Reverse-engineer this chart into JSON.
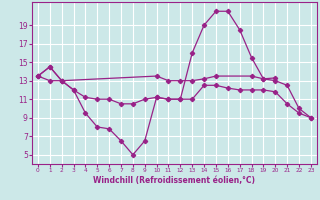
{
  "xlabel": "Windchill (Refroidissement éolien,°C)",
  "background_color": "#cce8e8",
  "line_color": "#992288",
  "grid_color": "#ffffff",
  "hours": [
    0,
    1,
    2,
    3,
    4,
    5,
    6,
    7,
    8,
    9,
    10,
    11,
    12,
    13,
    14,
    15,
    16,
    17,
    18,
    19,
    20,
    21,
    22,
    23
  ],
  "series_peak": [
    13.5,
    14.5,
    13.0,
    12.0,
    9.5,
    8.0,
    7.8,
    6.5,
    5.0,
    6.5,
    11.2,
    11.0,
    11.0,
    16.0,
    19.0,
    20.5,
    20.5,
    18.5,
    15.5,
    13.2,
    13.0,
    12.5,
    10.0,
    9.0
  ],
  "series_mid": [
    13.5,
    13.0,
    13.0,
    12.0,
    11.2,
    11.0,
    11.0,
    10.5,
    10.5,
    11.0,
    11.2,
    11.0,
    11.0,
    11.0,
    12.5,
    12.5,
    12.2,
    12.0,
    12.0,
    12.0,
    11.8,
    10.5,
    9.5,
    9.0
  ],
  "series_top_x": [
    0,
    1,
    2,
    10,
    11,
    12,
    13,
    14,
    15,
    18,
    19,
    20
  ],
  "series_top_y": [
    13.5,
    14.5,
    13.0,
    13.5,
    13.0,
    13.0,
    13.0,
    13.2,
    13.5,
    13.5,
    13.2,
    13.3
  ],
  "yticks": [
    5,
    7,
    9,
    11,
    13,
    15,
    17,
    19
  ],
  "ylim": [
    4.0,
    21.5
  ],
  "xlim": [
    -0.5,
    23.5
  ],
  "xlabel_fontsize": 5.5,
  "tick_fontsize_x": 4.2,
  "tick_fontsize_y": 5.5
}
